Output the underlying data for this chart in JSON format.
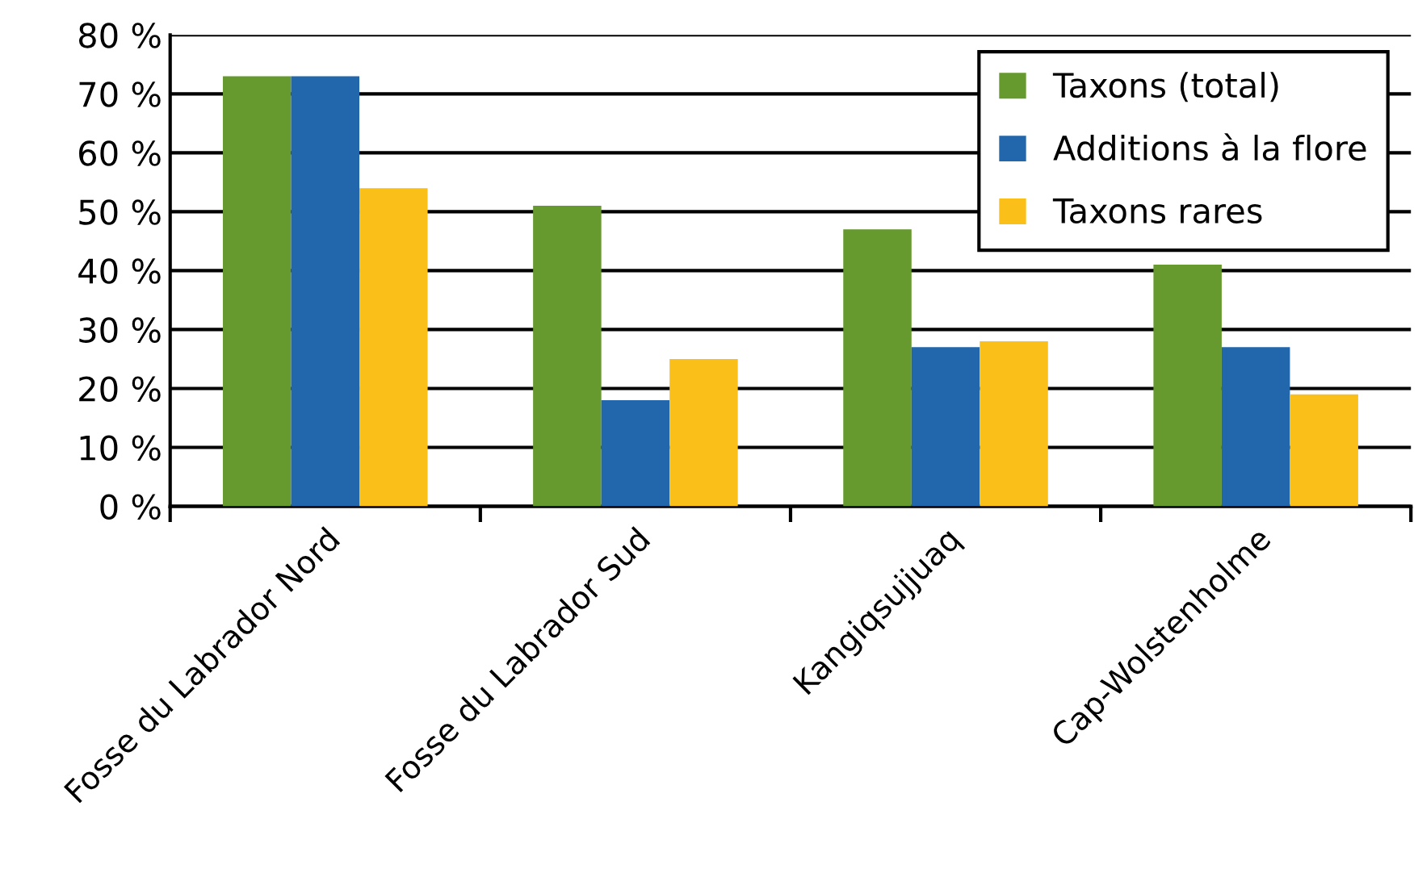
{
  "chart_data": {
    "type": "bar",
    "categories": [
      "Fosse du Labrador Nord",
      "Fosse du Labrador Sud",
      "Kangiqsujjuaq",
      "Cap-Wolstenholme"
    ],
    "series": [
      {
        "name": "Taxons (total)",
        "color": "#669a2e",
        "values": [
          73,
          51,
          47,
          41
        ]
      },
      {
        "name": "Additions à la flore",
        "color": "#2266ac",
        "values": [
          73,
          18,
          27,
          27
        ]
      },
      {
        "name": "Taxons rares",
        "color": "#fbbf1a",
        "values": [
          54,
          25,
          28,
          19
        ]
      }
    ],
    "ylim": [
      0,
      80
    ],
    "yticks": [
      {
        "value": 0,
        "label": "0 %"
      },
      {
        "value": 10,
        "label": "10 %"
      },
      {
        "value": 20,
        "label": "20 %"
      },
      {
        "value": 30,
        "label": "30 %"
      },
      {
        "value": 40,
        "label": "40 %"
      },
      {
        "value": 50,
        "label": "50 %"
      },
      {
        "value": 60,
        "label": "60 %"
      },
      {
        "value": 70,
        "label": "70 %"
      },
      {
        "value": 80,
        "label": "80 %"
      }
    ],
    "grid": "y",
    "legend": "top right"
  }
}
